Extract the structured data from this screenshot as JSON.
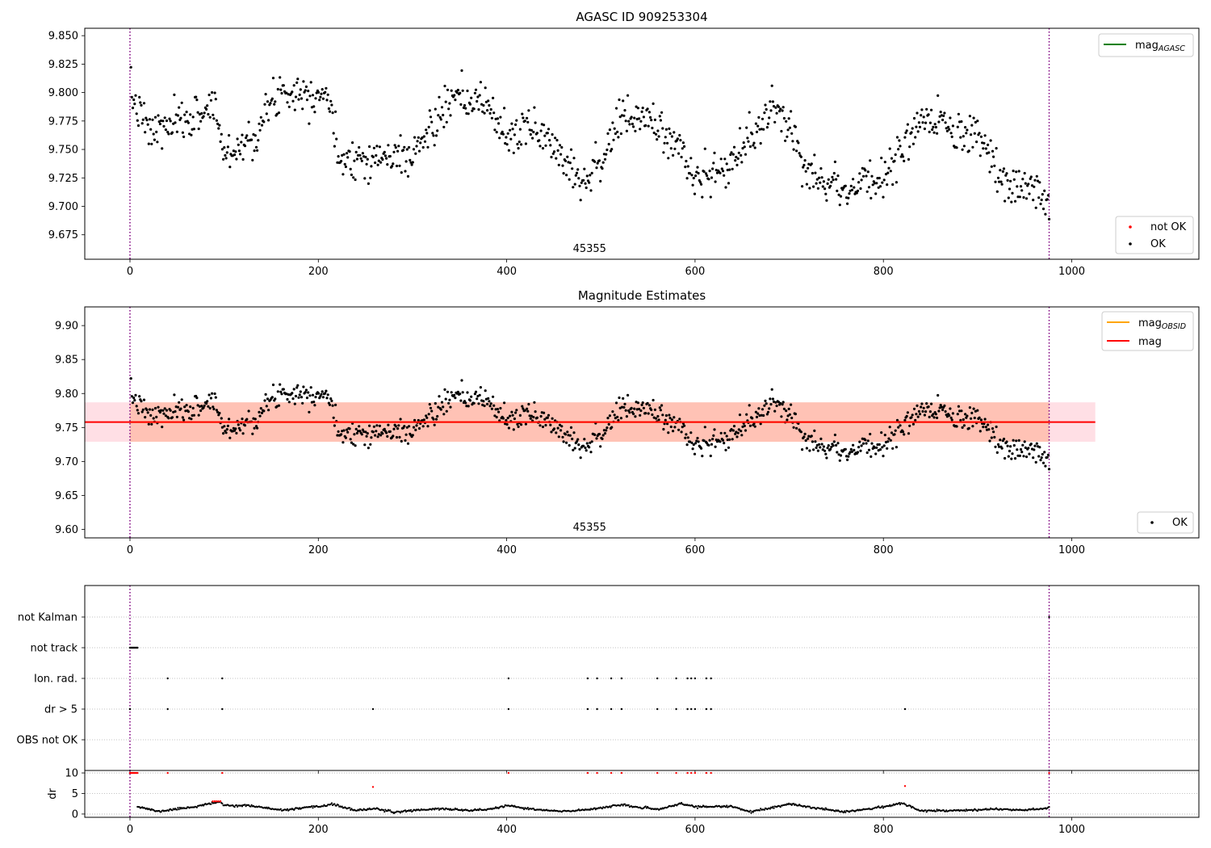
{
  "colors": {
    "ok": "#000000",
    "not_ok": "#ff0000",
    "mag_agasc": "#008000",
    "mag_obsid": "#ffa500",
    "mag": "#ff0000",
    "band_outer": "#ffc0cb",
    "band_inner": "#ffa07a",
    "obs_boundary": "#800080"
  },
  "chart_data": [
    {
      "type": "scatter",
      "title": "AGASC ID 909253304",
      "xlabel": "",
      "ylabel": "",
      "xlim": [
        -48,
        1135
      ],
      "ylim": [
        9.6535,
        9.8565
      ],
      "xticks": [
        0,
        200,
        400,
        600,
        800,
        1000
      ],
      "yticks": [
        9.675,
        9.7,
        9.725,
        9.75,
        9.775,
        9.8,
        9.825,
        9.85
      ],
      "ytick_labels": [
        "9.675",
        "9.700",
        "9.725",
        "9.750",
        "9.775",
        "9.800",
        "9.825",
        "9.850"
      ],
      "obs_boundaries": [
        0,
        976
      ],
      "obsid_label": {
        "x": 488,
        "text": "45355"
      },
      "legend_lines": [
        {
          "name": "mag",
          "sub": "AGASC",
          "color_key": "mag_agasc"
        }
      ],
      "legend_points": [
        {
          "name": "not OK",
          "color_key": "not_ok"
        },
        {
          "name": "OK",
          "color_key": "ok"
        }
      ],
      "series": {
        "gen": "seasonal",
        "n": 975,
        "x0": 1,
        "x1": 976,
        "seed": 7,
        "noise": 0.014,
        "drift": -2e-05,
        "knots": [
          [
            0,
            9.8
          ],
          [
            20,
            9.765
          ],
          [
            40,
            9.77
          ],
          [
            60,
            9.775
          ],
          [
            90,
            9.79
          ],
          [
            100,
            9.745
          ],
          [
            130,
            9.76
          ],
          [
            160,
            9.803
          ],
          [
            190,
            9.8
          ],
          [
            210,
            9.8
          ],
          [
            220,
            9.745
          ],
          [
            260,
            9.742
          ],
          [
            300,
            9.745
          ],
          [
            340,
            9.792
          ],
          [
            380,
            9.79
          ],
          [
            400,
            9.76
          ],
          [
            430,
            9.77
          ],
          [
            460,
            9.745
          ],
          [
            480,
            9.722
          ],
          [
            500,
            9.74
          ],
          [
            520,
            9.775
          ],
          [
            550,
            9.778
          ],
          [
            580,
            9.755
          ],
          [
            600,
            9.725
          ],
          [
            630,
            9.73
          ],
          [
            660,
            9.76
          ],
          [
            680,
            9.785
          ],
          [
            710,
            9.76
          ],
          [
            720,
            9.73
          ],
          [
            760,
            9.715
          ],
          [
            800,
            9.725
          ],
          [
            830,
            9.765
          ],
          [
            860,
            9.775
          ],
          [
            880,
            9.76
          ],
          [
            900,
            9.765
          ],
          [
            920,
            9.725
          ],
          [
            960,
            9.715
          ],
          [
            976,
            9.7
          ]
        ]
      }
    },
    {
      "type": "scatter",
      "title": "Magnitude Estimates",
      "xlabel": "",
      "ylabel": "",
      "xlim": [
        -48,
        1135
      ],
      "ylim": [
        9.5875,
        9.9275
      ],
      "xticks": [
        0,
        200,
        400,
        600,
        800,
        1000
      ],
      "yticks": [
        9.6,
        9.65,
        9.7,
        9.75,
        9.8,
        9.85,
        9.9
      ],
      "ytick_labels": [
        "9.60",
        "9.65",
        "9.70",
        "9.75",
        "9.80",
        "9.85",
        "9.90"
      ],
      "obs_boundaries": [
        0,
        976
      ],
      "obsid_label": {
        "x": 488,
        "text": "45355"
      },
      "mag_value": 9.758,
      "band": {
        "x0": -48,
        "x1": 1025,
        "low": 9.729,
        "high": 9.787
      },
      "legend_lines": [
        {
          "name": "mag",
          "sub": "OBSID",
          "color_key": "mag_obsid"
        },
        {
          "name": "mag",
          "sub": "",
          "color_key": "mag"
        }
      ],
      "legend_points": [
        {
          "name": "OK",
          "color_key": "ok"
        }
      ],
      "series_ref": 0
    },
    {
      "type": "scatter",
      "title": "",
      "xlabel": "",
      "ylabel": "",
      "xlim": [
        -48,
        1135
      ],
      "xticks": [
        0,
        200,
        400,
        600,
        800,
        1000
      ],
      "obs_boundaries": [
        0,
        976
      ],
      "flag_rows": [
        "not Kalman",
        "not track",
        "Ion. rad.",
        "dr > 5",
        "OBS not OK"
      ],
      "flags": {
        "not Kalman": [
          976
        ],
        "not track": [
          0,
          1,
          2,
          3,
          4,
          5,
          6,
          7,
          8
        ],
        "Ion. rad.": [
          40,
          98,
          402,
          486,
          496,
          511,
          522,
          560,
          580,
          592,
          596,
          600,
          612,
          617
        ],
        "dr > 5": [
          0,
          40,
          98,
          258,
          402,
          486,
          496,
          511,
          522,
          560,
          580,
          592,
          596,
          600,
          612,
          617,
          823
        ],
        "OBS not OK": []
      }
    },
    {
      "type": "scatter",
      "title": "",
      "xlabel": "",
      "ylabel": "dr",
      "xlim": [
        -48,
        1135
      ],
      "ylim": [
        -0.8,
        10.6
      ],
      "xticks": [
        0,
        200,
        400,
        600,
        800,
        1000
      ],
      "xtick_labels": [
        "0",
        "200",
        "400",
        "600",
        "800",
        "1000"
      ],
      "yticks": [
        0,
        5,
        10
      ],
      "ytick_labels": [
        "0",
        "5",
        "10"
      ],
      "obs_boundaries": [
        0,
        976
      ],
      "red_points": [
        [
          0,
          10
        ],
        [
          1,
          10
        ],
        [
          2,
          10
        ],
        [
          3,
          10
        ],
        [
          4,
          10
        ],
        [
          5,
          10
        ],
        [
          6,
          10
        ],
        [
          7,
          10
        ],
        [
          8,
          10
        ],
        [
          40,
          10
        ],
        [
          98,
          10
        ],
        [
          258,
          6.6
        ],
        [
          402,
          10
        ],
        [
          486,
          10
        ],
        [
          496,
          10
        ],
        [
          511,
          10
        ],
        [
          522,
          10
        ],
        [
          560,
          10
        ],
        [
          580,
          10
        ],
        [
          592,
          10
        ],
        [
          596,
          10
        ],
        [
          600,
          10
        ],
        [
          612,
          10
        ],
        [
          617,
          10
        ],
        [
          823,
          6.8
        ],
        [
          976,
          10
        ],
        [
          88,
          3.1
        ],
        [
          90,
          3.1
        ],
        [
          92,
          3.1
        ],
        [
          94,
          3.1
        ],
        [
          96,
          3.1
        ]
      ],
      "dr_series": {
        "n": 975,
        "x0": 1,
        "x1": 976,
        "seed": 11,
        "knots": [
          [
            8,
            1.9
          ],
          [
            30,
            0.6
          ],
          [
            55,
            1.4
          ],
          [
            70,
            1.8
          ],
          [
            95,
            3.0
          ],
          [
            100,
            2.1
          ],
          [
            130,
            2.0
          ],
          [
            160,
            0.9
          ],
          [
            200,
            1.8
          ],
          [
            215,
            2.4
          ],
          [
            240,
            0.8
          ],
          [
            260,
            1.4
          ],
          [
            280,
            0.4
          ],
          [
            300,
            0.9
          ],
          [
            330,
            1.3
          ],
          [
            360,
            0.9
          ],
          [
            380,
            1.1
          ],
          [
            400,
            2.0
          ],
          [
            430,
            1.1
          ],
          [
            460,
            0.6
          ],
          [
            490,
            1.2
          ],
          [
            520,
            2.2
          ],
          [
            560,
            1.1
          ],
          [
            585,
            2.5
          ],
          [
            600,
            1.8
          ],
          [
            640,
            1.8
          ],
          [
            660,
            0.5
          ],
          [
            700,
            2.4
          ],
          [
            740,
            1.1
          ],
          [
            760,
            0.6
          ],
          [
            790,
            1.4
          ],
          [
            820,
            2.6
          ],
          [
            840,
            0.8
          ],
          [
            880,
            0.9
          ],
          [
            920,
            1.2
          ],
          [
            950,
            1.0
          ],
          [
            976,
            1.5
          ]
        ]
      }
    }
  ]
}
